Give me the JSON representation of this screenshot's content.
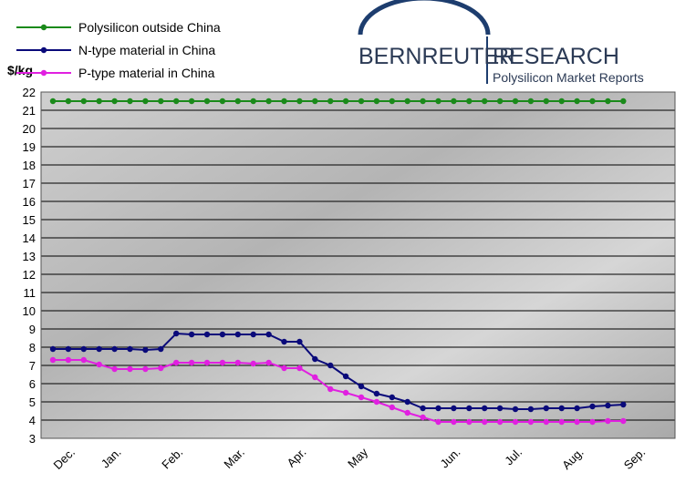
{
  "chart_data": {
    "type": "line",
    "ylabel": "$/kg",
    "annotations": [
      "BERNREUTER",
      "RESEARCH",
      "Polysilicon Market Reports"
    ],
    "categories": [
      null,
      "Dec.",
      null,
      null,
      "Jan.",
      null,
      null,
      null,
      "Feb.",
      null,
      null,
      null,
      "Mar.",
      null,
      null,
      null,
      "Apr.",
      null,
      null,
      null,
      "May",
      null,
      null,
      null,
      null,
      null,
      "Jun.",
      null,
      null,
      null,
      "Jul.",
      null,
      null,
      null,
      "Aug.",
      null,
      null,
      null,
      "Sep."
    ],
    "series": [
      {
        "name": "Polysilicon outside China",
        "color": "#1a8a1a",
        "values": [
          21.5,
          21.5,
          21.5,
          21.5,
          21.5,
          21.5,
          21.5,
          21.5,
          21.5,
          21.5,
          21.5,
          21.5,
          21.5,
          21.5,
          21.5,
          21.5,
          21.5,
          21.5,
          21.5,
          21.5,
          21.5,
          21.5,
          21.5,
          21.5,
          21.5,
          21.5,
          21.5,
          21.5,
          21.5,
          21.5,
          21.5,
          21.5,
          21.5,
          21.5,
          21.5,
          21.5,
          21.5,
          21.5,
          null
        ]
      },
      {
        "name": "N-type material in China",
        "color": "#0a0a7a",
        "values": [
          7.9,
          7.9,
          7.9,
          7.9,
          7.9,
          7.9,
          7.85,
          7.9,
          8.75,
          8.7,
          8.7,
          8.7,
          8.7,
          8.7,
          8.7,
          8.3,
          8.3,
          7.35,
          7.0,
          6.4,
          5.85,
          5.45,
          5.25,
          5.0,
          4.65,
          4.65,
          4.65,
          4.65,
          4.65,
          4.65,
          4.6,
          4.6,
          4.65,
          4.65,
          4.65,
          4.75,
          4.8,
          4.85,
          null
        ]
      },
      {
        "name": "P-type material in China",
        "color": "#e020e0",
        "values": [
          7.3,
          7.3,
          7.3,
          7.05,
          6.8,
          6.8,
          6.8,
          6.85,
          7.15,
          7.15,
          7.15,
          7.15,
          7.15,
          7.1,
          7.15,
          6.85,
          6.85,
          6.35,
          5.7,
          5.5,
          5.25,
          5.0,
          4.7,
          4.4,
          4.15,
          3.9,
          3.9,
          3.9,
          3.9,
          3.9,
          3.9,
          3.9,
          3.9,
          3.9,
          3.9,
          3.9,
          3.95,
          3.95,
          null
        ]
      }
    ],
    "ylim": [
      3,
      22
    ],
    "yticks": [
      3,
      4,
      5,
      6,
      7,
      8,
      9,
      10,
      11,
      12,
      13,
      14,
      15,
      16,
      17,
      18,
      19,
      20,
      21,
      22
    ],
    "grid": true
  }
}
